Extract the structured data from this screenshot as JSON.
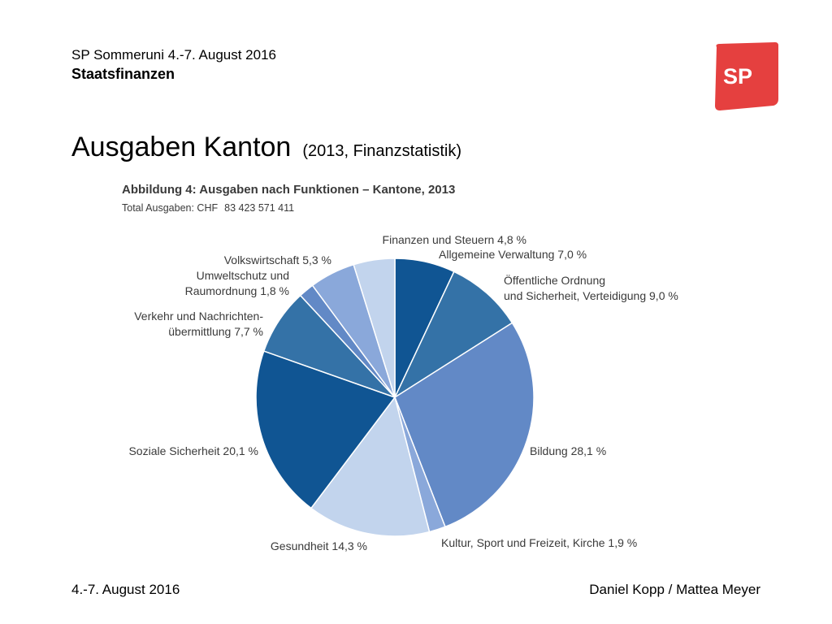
{
  "header": {
    "event": "SP Sommeruni 4.-7. August 2016",
    "topic": "Staatsfinanzen"
  },
  "logo": {
    "text": "SP",
    "color": "#e5403f"
  },
  "slide": {
    "title": "Ausgaben Kanton",
    "subtitle": "(2013, Finanzstatistik)"
  },
  "footer": {
    "left": "4.-7. August 2016",
    "right": "Daniel Kopp / Mattea Meyer"
  },
  "chart_data": {
    "type": "pie",
    "title": "Abbildung 4: Ausgaben nach Funktionen – Kantone, 2013",
    "subtitle": {
      "label": "Total Ausgaben: CHF",
      "value": "83 423 571 411"
    },
    "start": "12 o'clock, clockwise",
    "slices": [
      {
        "lines": [
          "Allgemeine Verwaltung 7,0 %"
        ],
        "value": 7.0,
        "color": "#105593"
      },
      {
        "lines": [
          "Öffentliche Ordnung",
          "und Sicherheit, Verteidigung 9,0 %"
        ],
        "value": 9.0,
        "color": "#3472a7"
      },
      {
        "lines": [
          "Bildung 28,1 %"
        ],
        "value": 28.1,
        "color": "#6289c6"
      },
      {
        "lines": [
          "Kultur, Sport und Freizeit, Kirche 1,9 %"
        ],
        "value": 1.9,
        "color": "#8aa8da"
      },
      {
        "lines": [
          "Gesundheit 14,3 %"
        ],
        "value": 14.3,
        "color": "#c2d4ed"
      },
      {
        "lines": [
          "Soziale Sicherheit 20,1 %"
        ],
        "value": 20.1,
        "color": "#105593"
      },
      {
        "lines": [
          "Verkehr und Nachrichten-",
          "übermittlung 7,7 %"
        ],
        "value": 7.7,
        "color": "#3472a7"
      },
      {
        "lines": [
          "Umweltschutz und",
          "Raumordnung 1,8 %"
        ],
        "value": 1.8,
        "color": "#6289c6"
      },
      {
        "lines": [
          "Volkswirtschaft 5,3 %"
        ],
        "value": 5.3,
        "color": "#8aa8da"
      },
      {
        "lines": [
          "Finanzen und Steuern 4,8 %"
        ],
        "value": 4.8,
        "color": "#c2d4ed"
      }
    ]
  }
}
